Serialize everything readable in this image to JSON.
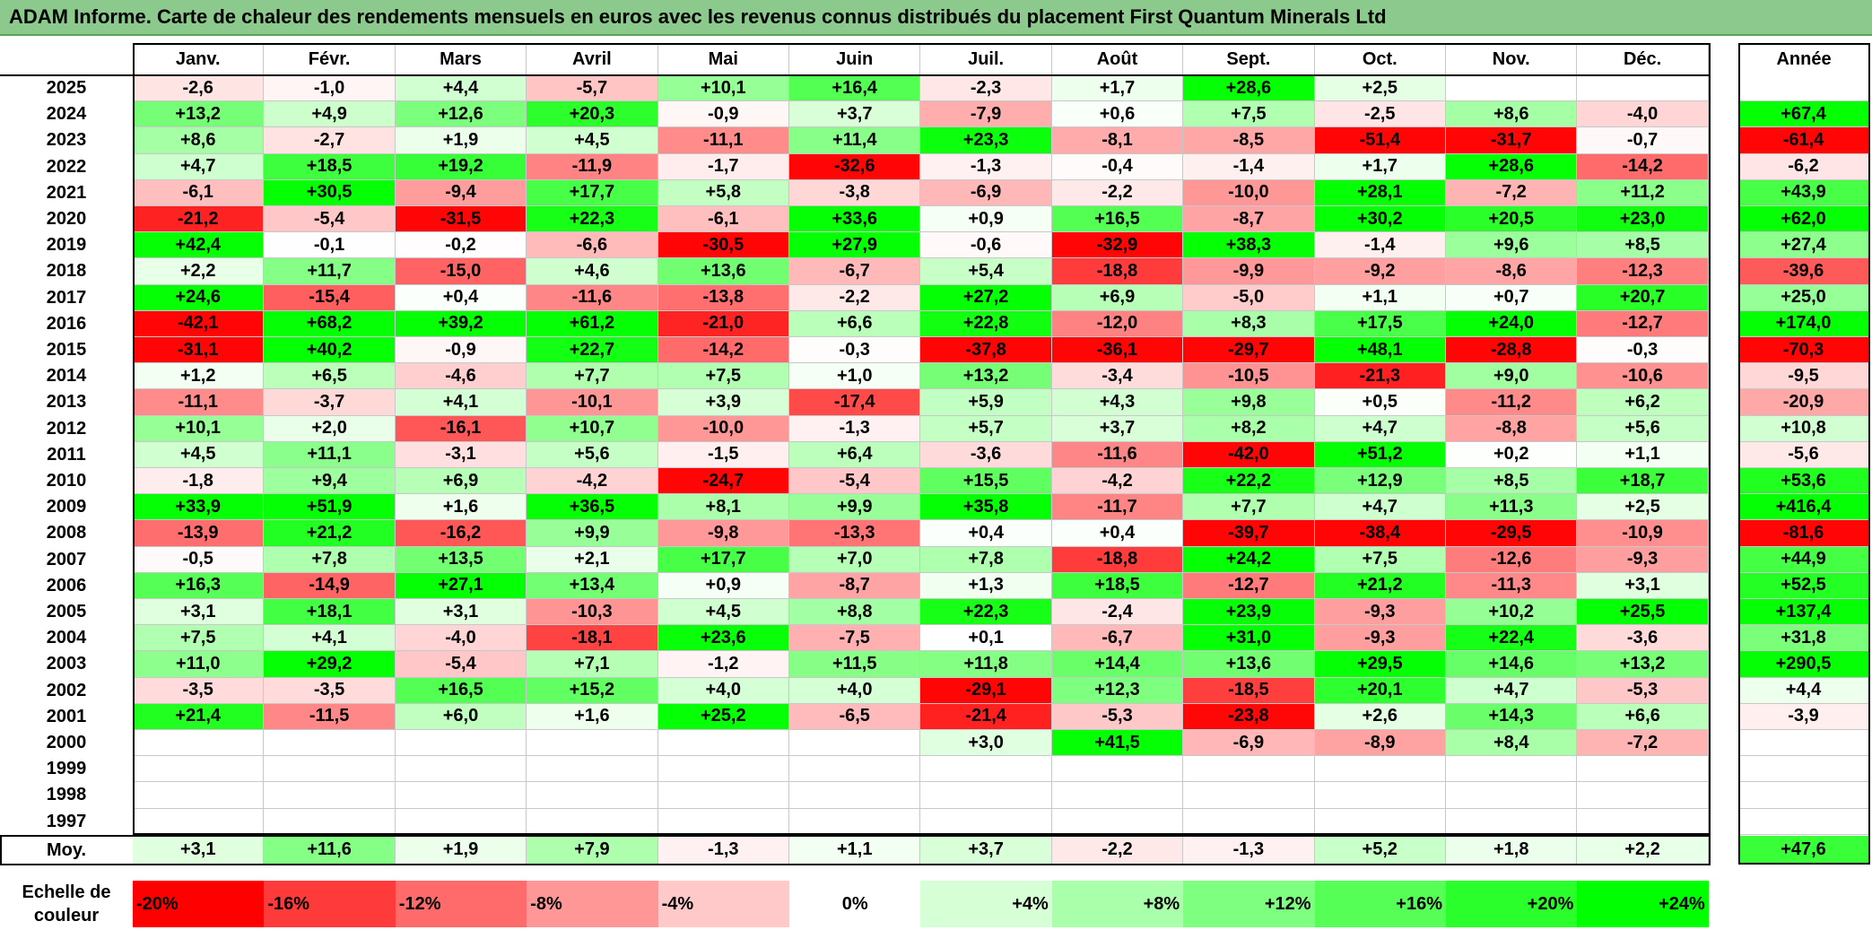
{
  "title": "ADAM Informe. Carte de chaleur des rendements mensuels en euros avec les revenus connus distribués du placement First Quantum Minerals Ltd",
  "chart_data": {
    "type": "heatmap",
    "title": "ADAM Informe. Carte de chaleur des rendements mensuels en euros avec les revenus connus distribués du placement First Quantum Minerals Ltd",
    "months": [
      "Janv.",
      "Févr.",
      "Mars",
      "Avril",
      "Mai",
      "Juin",
      "Juil.",
      "Août",
      "Sept.",
      "Oct.",
      "Nov.",
      "Déc."
    ],
    "year_header": "Année",
    "rows": [
      {
        "year": "2025",
        "values": [
          "-2,6",
          "-1,0",
          "+4,4",
          "-5,7",
          "+10,1",
          "+16,4",
          "-2,3",
          "+1,7",
          "+28,6",
          "+2,5",
          "",
          ""
        ],
        "annual": ""
      },
      {
        "year": "2024",
        "values": [
          "+13,2",
          "+4,9",
          "+12,6",
          "+20,3",
          "-0,9",
          "+3,7",
          "-7,9",
          "+0,6",
          "+7,5",
          "-2,5",
          "+8,6",
          "-4,0"
        ],
        "annual": "+67,4"
      },
      {
        "year": "2023",
        "values": [
          "+8,6",
          "-2,7",
          "+1,9",
          "+4,5",
          "-11,1",
          "+11,4",
          "+23,3",
          "-8,1",
          "-8,5",
          "-51,4",
          "-31,7",
          "-0,7"
        ],
        "annual": "-61,4"
      },
      {
        "year": "2022",
        "values": [
          "+4,7",
          "+18,5",
          "+19,2",
          "-11,9",
          "-1,7",
          "-32,6",
          "-1,3",
          "-0,4",
          "-1,4",
          "+1,7",
          "+28,6",
          "-14,2"
        ],
        "annual": "-6,2"
      },
      {
        "year": "2021",
        "values": [
          "-6,1",
          "+30,5",
          "-9,4",
          "+17,7",
          "+5,8",
          "-3,8",
          "-6,9",
          "-2,2",
          "-10,0",
          "+28,1",
          "-7,2",
          "+11,2"
        ],
        "annual": "+43,9"
      },
      {
        "year": "2020",
        "values": [
          "-21,2",
          "-5,4",
          "-31,5",
          "+22,3",
          "-6,1",
          "+33,6",
          "+0,9",
          "+16,5",
          "-8,7",
          "+30,2",
          "+20,5",
          "+23,0"
        ],
        "annual": "+62,0"
      },
      {
        "year": "2019",
        "values": [
          "+42,4",
          "-0,1",
          "-0,2",
          "-6,6",
          "-30,5",
          "+27,9",
          "-0,6",
          "-32,9",
          "+38,3",
          "-1,4",
          "+9,6",
          "+8,5"
        ],
        "annual": "+27,4"
      },
      {
        "year": "2018",
        "values": [
          "+2,2",
          "+11,7",
          "-15,0",
          "+4,6",
          "+13,6",
          "-6,7",
          "+5,4",
          "-18,8",
          "-9,9",
          "-9,2",
          "-8,6",
          "-12,3"
        ],
        "annual": "-39,6"
      },
      {
        "year": "2017",
        "values": [
          "+24,6",
          "-15,4",
          "+0,4",
          "-11,6",
          "-13,8",
          "-2,2",
          "+27,2",
          "+6,9",
          "-5,0",
          "+1,1",
          "+0,7",
          "+20,7"
        ],
        "annual": "+25,0"
      },
      {
        "year": "2016",
        "values": [
          "-42,1",
          "+68,2",
          "+39,2",
          "+61,2",
          "-21,0",
          "+6,6",
          "+22,8",
          "-12,0",
          "+8,3",
          "+17,5",
          "+24,0",
          "-12,7"
        ],
        "annual": "+174,0"
      },
      {
        "year": "2015",
        "values": [
          "-31,1",
          "+40,2",
          "-0,9",
          "+22,7",
          "-14,2",
          "-0,3",
          "-37,8",
          "-36,1",
          "-29,7",
          "+48,1",
          "-28,8",
          "-0,3"
        ],
        "annual": "-70,3"
      },
      {
        "year": "2014",
        "values": [
          "+1,2",
          "+6,5",
          "-4,6",
          "+7,7",
          "+7,5",
          "+1,0",
          "+13,2",
          "-3,4",
          "-10,5",
          "-21,3",
          "+9,0",
          "-10,6"
        ],
        "annual": "-9,5"
      },
      {
        "year": "2013",
        "values": [
          "-11,1",
          "-3,7",
          "+4,1",
          "-10,1",
          "+3,9",
          "-17,4",
          "+5,9",
          "+4,3",
          "+9,8",
          "+0,5",
          "-11,2",
          "+6,2"
        ],
        "annual": "-20,9"
      },
      {
        "year": "2012",
        "values": [
          "+10,1",
          "+2,0",
          "-16,1",
          "+10,7",
          "-10,0",
          "-1,3",
          "+5,7",
          "+3,7",
          "+8,2",
          "+4,7",
          "-8,8",
          "+5,6"
        ],
        "annual": "+10,8"
      },
      {
        "year": "2011",
        "values": [
          "+4,5",
          "+11,1",
          "-3,1",
          "+5,6",
          "-1,5",
          "+6,4",
          "-3,6",
          "-11,6",
          "-42,0",
          "+51,2",
          "+0,2",
          "+1,1"
        ],
        "annual": "-5,6"
      },
      {
        "year": "2010",
        "values": [
          "-1,8",
          "+9,4",
          "+6,9",
          "-4,2",
          "-24,7",
          "-5,4",
          "+15,5",
          "-4,2",
          "+22,2",
          "+12,9",
          "+8,5",
          "+18,7"
        ],
        "annual": "+53,6"
      },
      {
        "year": "2009",
        "values": [
          "+33,9",
          "+51,9",
          "+1,6",
          "+36,5",
          "+8,1",
          "+9,9",
          "+35,8",
          "-11,7",
          "+7,7",
          "+4,7",
          "+11,3",
          "+2,5"
        ],
        "annual": "+416,4"
      },
      {
        "year": "2008",
        "values": [
          "-13,9",
          "+21,2",
          "-16,2",
          "+9,9",
          "-9,8",
          "-13,3",
          "+0,4",
          "+0,4",
          "-39,7",
          "-38,4",
          "-29,5",
          "-10,9"
        ],
        "annual": "-81,6"
      },
      {
        "year": "2007",
        "values": [
          "-0,5",
          "+7,8",
          "+13,5",
          "+2,1",
          "+17,7",
          "+7,0",
          "+7,8",
          "-18,8",
          "+24,2",
          "+7,5",
          "-12,6",
          "-9,3"
        ],
        "annual": "+44,9"
      },
      {
        "year": "2006",
        "values": [
          "+16,3",
          "-14,9",
          "+27,1",
          "+13,4",
          "+0,9",
          "-8,7",
          "+1,3",
          "+18,5",
          "-12,7",
          "+21,2",
          "-11,3",
          "+3,1"
        ],
        "annual": "+52,5"
      },
      {
        "year": "2005",
        "values": [
          "+3,1",
          "+18,1",
          "+3,1",
          "-10,3",
          "+4,5",
          "+8,8",
          "+22,3",
          "-2,4",
          "+23,9",
          "-9,3",
          "+10,2",
          "+25,5"
        ],
        "annual": "+137,4"
      },
      {
        "year": "2004",
        "values": [
          "+7,5",
          "+4,1",
          "-4,0",
          "-18,1",
          "+23,6",
          "-7,5",
          "+0,1",
          "-6,7",
          "+31,0",
          "-9,3",
          "+22,4",
          "-3,6"
        ],
        "annual": "+31,8"
      },
      {
        "year": "2003",
        "values": [
          "+11,0",
          "+29,2",
          "-5,4",
          "+7,1",
          "-1,2",
          "+11,5",
          "+11,8",
          "+14,4",
          "+13,6",
          "+29,5",
          "+14,6",
          "+13,2"
        ],
        "annual": "+290,5"
      },
      {
        "year": "2002",
        "values": [
          "-3,5",
          "-3,5",
          "+16,5",
          "+15,2",
          "+4,0",
          "+4,0",
          "-29,1",
          "+12,3",
          "-18,5",
          "+20,1",
          "+4,7",
          "-5,3"
        ],
        "annual": "+4,4"
      },
      {
        "year": "2001",
        "values": [
          "+21,4",
          "-11,5",
          "+6,0",
          "+1,6",
          "+25,2",
          "-6,5",
          "-21,4",
          "-5,3",
          "-23,8",
          "+2,6",
          "+14,3",
          "+6,6"
        ],
        "annual": "-3,9"
      },
      {
        "year": "2000",
        "values": [
          "",
          "",
          "",
          "",
          "",
          "",
          "+3,0",
          "+41,5",
          "-6,9",
          "-8,9",
          "+8,4",
          "-7,2"
        ],
        "annual": ""
      },
      {
        "year": "1999",
        "values": [
          "",
          "",
          "",
          "",
          "",
          "",
          "",
          "",
          "",
          "",
          "",
          ""
        ],
        "annual": ""
      },
      {
        "year": "1998",
        "values": [
          "",
          "",
          "",
          "",
          "",
          "",
          "",
          "",
          "",
          "",
          "",
          ""
        ],
        "annual": ""
      },
      {
        "year": "1997",
        "values": [
          "",
          "",
          "",
          "",
          "",
          "",
          "",
          "",
          "",
          "",
          "",
          ""
        ],
        "annual": ""
      }
    ],
    "average": {
      "label": "Moy.",
      "values": [
        "+3,1",
        "+11,6",
        "+1,9",
        "+7,9",
        "-1,3",
        "+1,1",
        "+3,7",
        "-2,2",
        "-1,3",
        "+5,2",
        "+1,8",
        "+2,2"
      ],
      "annual": "+47,6"
    },
    "color_scale": {
      "label": "Echelle de couleur",
      "steps": [
        "-20%",
        "-16%",
        "-12%",
        "-8%",
        "-4%",
        "0%",
        "+4%",
        "+8%",
        "+12%",
        "+16%",
        "+20%",
        "+24%"
      ],
      "colors": [
        "#ff0000",
        "#ff3a3a",
        "#ff6a6a",
        "#ff9797",
        "#ffc9c9",
        "#ffffff",
        "#d6ffd6",
        "#aaffaa",
        "#7fff7f",
        "#55ff55",
        "#2bff2b",
        "#00ff00"
      ]
    }
  }
}
